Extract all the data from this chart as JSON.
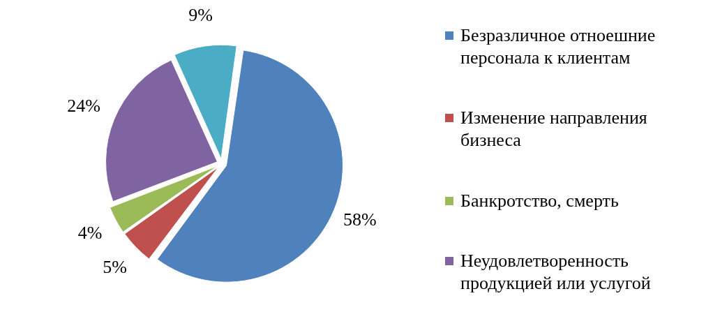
{
  "chart_data": {
    "type": "pie",
    "categories": [
      " Безразличное отноешние персонала к клиентам",
      "Изменение направления бизнеса",
      "Банкротство, смерть",
      "Неудовлетворенность продукцией или услугой",
      null
    ],
    "values": [
      58,
      5,
      4,
      24,
      9
    ],
    "colors": [
      "#4f81bd",
      "#c0504d",
      "#9bbb59",
      "#8064a2",
      "#4bacc6"
    ],
    "value_labels": [
      "58%",
      "5%",
      "4%",
      "24%",
      "9%"
    ],
    "legend": "right"
  }
}
